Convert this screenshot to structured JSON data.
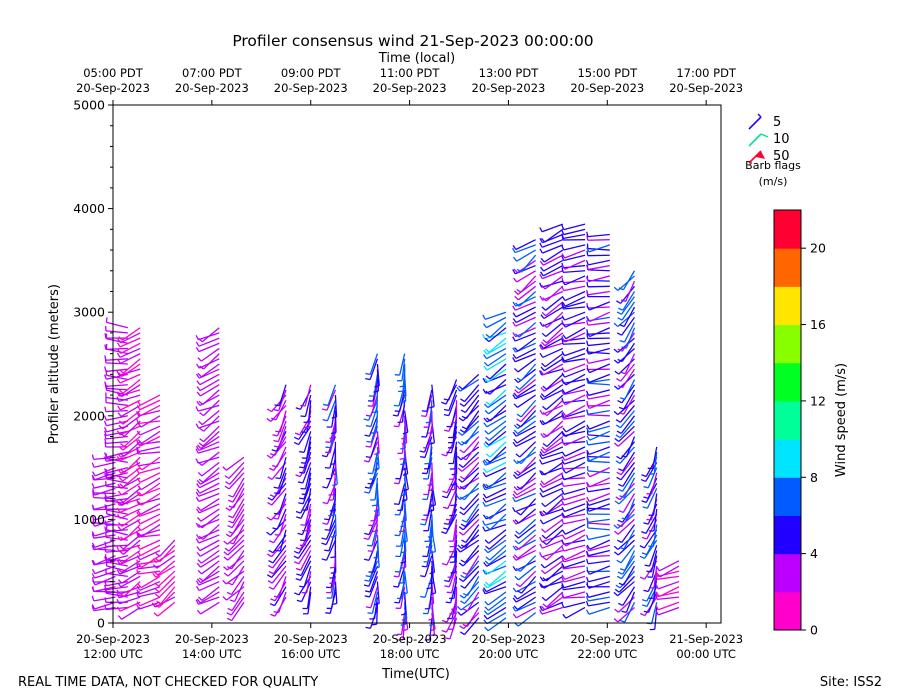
{
  "chart_data": {
    "type": "wind-barb",
    "title": "Profiler consensus wind 21-Sep-2023 00:00:00",
    "top_axis_label": "Time (local)",
    "top_ticks": [
      {
        "line1": "05:00 PDT",
        "line2": "20-Sep-2023",
        "hour": 12
      },
      {
        "line1": "07:00 PDT",
        "line2": "20-Sep-2023",
        "hour": 14
      },
      {
        "line1": "09:00 PDT",
        "line2": "20-Sep-2023",
        "hour": 16
      },
      {
        "line1": "11:00 PDT",
        "line2": "20-Sep-2023",
        "hour": 18
      },
      {
        "line1": "13:00 PDT",
        "line2": "20-Sep-2023",
        "hour": 20
      },
      {
        "line1": "15:00 PDT",
        "line2": "20-Sep-2023",
        "hour": 22
      },
      {
        "line1": "17:00 PDT",
        "line2": "20-Sep-2023",
        "hour": 24
      }
    ],
    "xlabel": "Time(UTC)",
    "x_ticks": [
      {
        "line1": "20-Sep-2023",
        "line2": "12:00 UTC",
        "hour": 12
      },
      {
        "line1": "20-Sep-2023",
        "line2": "14:00 UTC",
        "hour": 14
      },
      {
        "line1": "20-Sep-2023",
        "line2": "16:00 UTC",
        "hour": 16
      },
      {
        "line1": "20-Sep-2023",
        "line2": "18:00 UTC",
        "hour": 18
      },
      {
        "line1": "20-Sep-2023",
        "line2": "20:00 UTC",
        "hour": 20
      },
      {
        "line1": "20-Sep-2023",
        "line2": "22:00 UTC",
        "hour": 22
      },
      {
        "line1": "21-Sep-2023",
        "line2": "00:00 UTC",
        "hour": 24
      }
    ],
    "xlim_hours": [
      12,
      24.3
    ],
    "ylabel": "Profiler altitude (meters)",
    "ylim": [
      0,
      5000
    ],
    "y_ticks": [
      0,
      1000,
      2000,
      3000,
      4000,
      5000
    ],
    "legend": {
      "title_line1": "Barb flags",
      "title_line2": "(m/s)",
      "entries": [
        {
          "label": "5",
          "color": "#2200ff"
        },
        {
          "label": "10",
          "color": "#00e68a"
        },
        {
          "label": "50",
          "color": "#ff0033"
        }
      ]
    },
    "colorbar": {
      "label": "Wind speed (m/s)",
      "min": 0,
      "max": 22,
      "ticks": [
        0,
        4,
        8,
        12,
        16,
        20
      ],
      "colors": [
        "#ff00cc",
        "#bb00ff",
        "#2200ff",
        "#005cff",
        "#00e5ff",
        "#00ff99",
        "#00ff22",
        "#88ff00",
        "#ffe600",
        "#ff6600",
        "#ff0033"
      ]
    },
    "columns": [
      {
        "hour": 12.05,
        "height_min": 150,
        "height_max": 1600,
        "direction_deg": 260,
        "speed_range": [
          2,
          4
        ]
      },
      {
        "hour": 12.3,
        "height_min": 150,
        "height_max": 2850,
        "direction_deg": 270,
        "speed_range": [
          2,
          4
        ]
      },
      {
        "hour": 12.55,
        "height_min": 150,
        "height_max": 2850,
        "direction_deg": 240,
        "speed_range": [
          1,
          3
        ]
      },
      {
        "hour": 12.95,
        "height_min": 200,
        "height_max": 2200,
        "direction_deg": 250,
        "speed_range": [
          1,
          3
        ]
      },
      {
        "hour": 13.25,
        "height_min": 200,
        "height_max": 800,
        "direction_deg": 230,
        "speed_range": [
          1,
          3
        ]
      },
      {
        "hour": 14.15,
        "height_min": 200,
        "height_max": 2850,
        "direction_deg": 240,
        "speed_range": [
          2,
          4
        ]
      },
      {
        "hour": 14.65,
        "height_min": 200,
        "height_max": 1600,
        "direction_deg": 220,
        "speed_range": [
          2,
          4
        ]
      },
      {
        "hour": 15.5,
        "height_min": 250,
        "height_max": 2300,
        "direction_deg": 210,
        "speed_range": [
          2,
          5
        ]
      },
      {
        "hour": 16.0,
        "height_min": 300,
        "height_max": 2300,
        "direction_deg": 200,
        "speed_range": [
          3,
          6
        ]
      },
      {
        "hour": 16.5,
        "height_min": 300,
        "height_max": 2300,
        "direction_deg": 190,
        "speed_range": [
          3,
          7
        ]
      },
      {
        "hour": 17.35,
        "height_min": 150,
        "height_max": 2600,
        "direction_deg": 190,
        "speed_range": [
          3,
          8
        ]
      },
      {
        "hour": 17.9,
        "height_min": 50,
        "height_max": 2600,
        "direction_deg": 185,
        "speed_range": [
          3,
          8
        ]
      },
      {
        "hour": 18.45,
        "height_min": 50,
        "height_max": 2300,
        "direction_deg": 185,
        "speed_range": [
          3,
          7
        ]
      },
      {
        "hour": 18.95,
        "height_min": 50,
        "height_max": 2350,
        "direction_deg": 195,
        "speed_range": [
          3,
          6
        ]
      },
      {
        "hour": 19.4,
        "height_min": 50,
        "height_max": 2400,
        "direction_deg": 225,
        "speed_range": [
          3,
          7
        ]
      },
      {
        "hour": 19.95,
        "height_min": 50,
        "height_max": 3000,
        "direction_deg": 240,
        "speed_range": [
          4,
          9
        ]
      },
      {
        "hour": 20.55,
        "height_min": 100,
        "height_max": 3700,
        "direction_deg": 235,
        "speed_range": [
          3,
          7
        ]
      },
      {
        "hour": 21.1,
        "height_min": 150,
        "height_max": 3850,
        "direction_deg": 240,
        "speed_range": [
          3,
          6
        ]
      },
      {
        "hour": 21.55,
        "height_min": 150,
        "height_max": 3850,
        "direction_deg": 255,
        "speed_range": [
          3,
          6
        ]
      },
      {
        "hour": 22.05,
        "height_min": 150,
        "height_max": 3750,
        "direction_deg": 260,
        "speed_range": [
          3,
          7
        ]
      },
      {
        "hour": 22.55,
        "height_min": 150,
        "height_max": 3400,
        "direction_deg": 215,
        "speed_range": [
          3,
          8
        ]
      },
      {
        "hour": 23.0,
        "height_min": 150,
        "height_max": 1700,
        "direction_deg": 200,
        "speed_range": [
          3,
          8
        ]
      },
      {
        "hour": 23.45,
        "height_min": 150,
        "height_max": 600,
        "direction_deg": 250,
        "speed_range": [
          1,
          3
        ]
      }
    ]
  },
  "footer": {
    "left": "REAL TIME DATA, NOT CHECKED FOR QUALITY",
    "right": "Site: ISS2"
  }
}
